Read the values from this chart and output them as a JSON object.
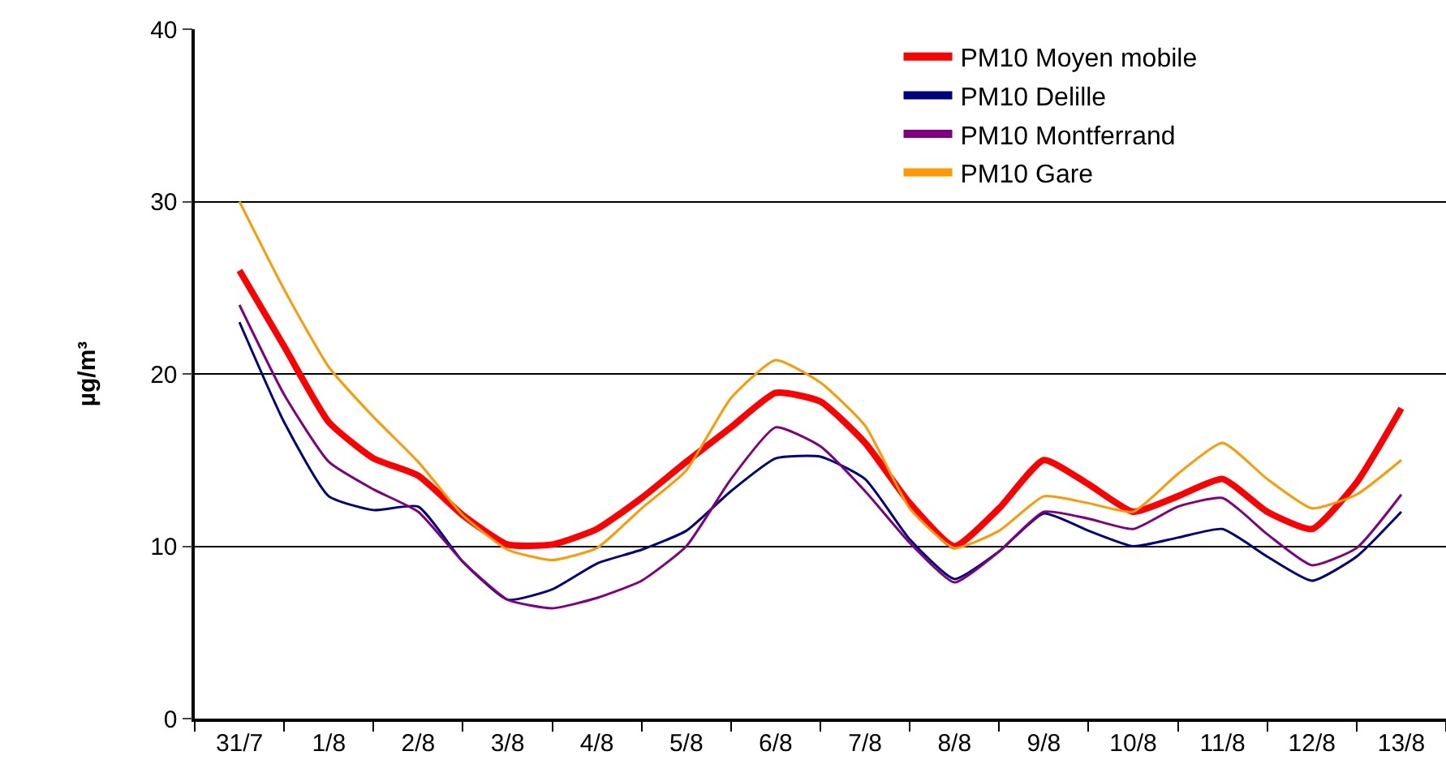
{
  "chart_data": {
    "type": "line",
    "ylabel": "µg/m³",
    "categories": [
      "31/7",
      null,
      "1/8",
      null,
      "2/8",
      null,
      "3/8",
      null,
      "4/8",
      null,
      "5/8",
      null,
      "6/8",
      null,
      "7/8",
      null,
      "8/8",
      null,
      "9/8",
      null,
      "10/8",
      null,
      "11/8",
      null,
      "12/8",
      null,
      "13/8"
    ],
    "series": [
      {
        "name": "PM10 Moyen mobile",
        "color": "#ff0000",
        "values": [
          26,
          21.6,
          17.2,
          15.1,
          14.1,
          11.8,
          10.1,
          10.1,
          11,
          12.8,
          14.9,
          16.9,
          18.9,
          18.4,
          16,
          12.5,
          10,
          12.2,
          15,
          13.6,
          12,
          12.9,
          13.9,
          12,
          11,
          13.7,
          18
        ]
      },
      {
        "name": "PM10 Delille",
        "color": "#000080",
        "values": [
          23,
          17.2,
          12.9,
          12.1,
          12.3,
          9.1,
          6.9,
          7.5,
          9,
          9.8,
          10.9,
          13.2,
          15.1,
          15.2,
          13.9,
          10.4,
          8.1,
          9.7,
          11.9,
          10.9,
          10,
          10.5,
          11,
          9.4,
          8,
          9.4,
          12
        ]
      },
      {
        "name": "PM10 Montferrand",
        "color": "#800080",
        "values": [
          24,
          18.8,
          14.9,
          13.3,
          12,
          9.1,
          6.9,
          6.4,
          7,
          8,
          10,
          13.9,
          16.9,
          15.8,
          13.2,
          10.2,
          7.9,
          9.7,
          12,
          11.6,
          11,
          12.3,
          12.8,
          10.7,
          8.9,
          9.9,
          13
        ]
      },
      {
        "name": "PM10 Gare",
        "color": "#ff9900",
        "values": [
          30,
          24.9,
          20.4,
          17.5,
          14.9,
          11.8,
          9.8,
          9.2,
          9.9,
          12.2,
          14.4,
          18.6,
          20.8,
          19.5,
          17,
          12.2,
          9.9,
          10.9,
          12.9,
          12.5,
          12,
          14.2,
          16,
          13.9,
          12.2,
          13,
          15
        ]
      }
    ],
    "ylim": [
      0,
      40
    ],
    "yticks": [
      0,
      10,
      20,
      30,
      40
    ],
    "grid": "y",
    "legend": "top right",
    "marker": "none",
    "line_style": "solid"
  }
}
